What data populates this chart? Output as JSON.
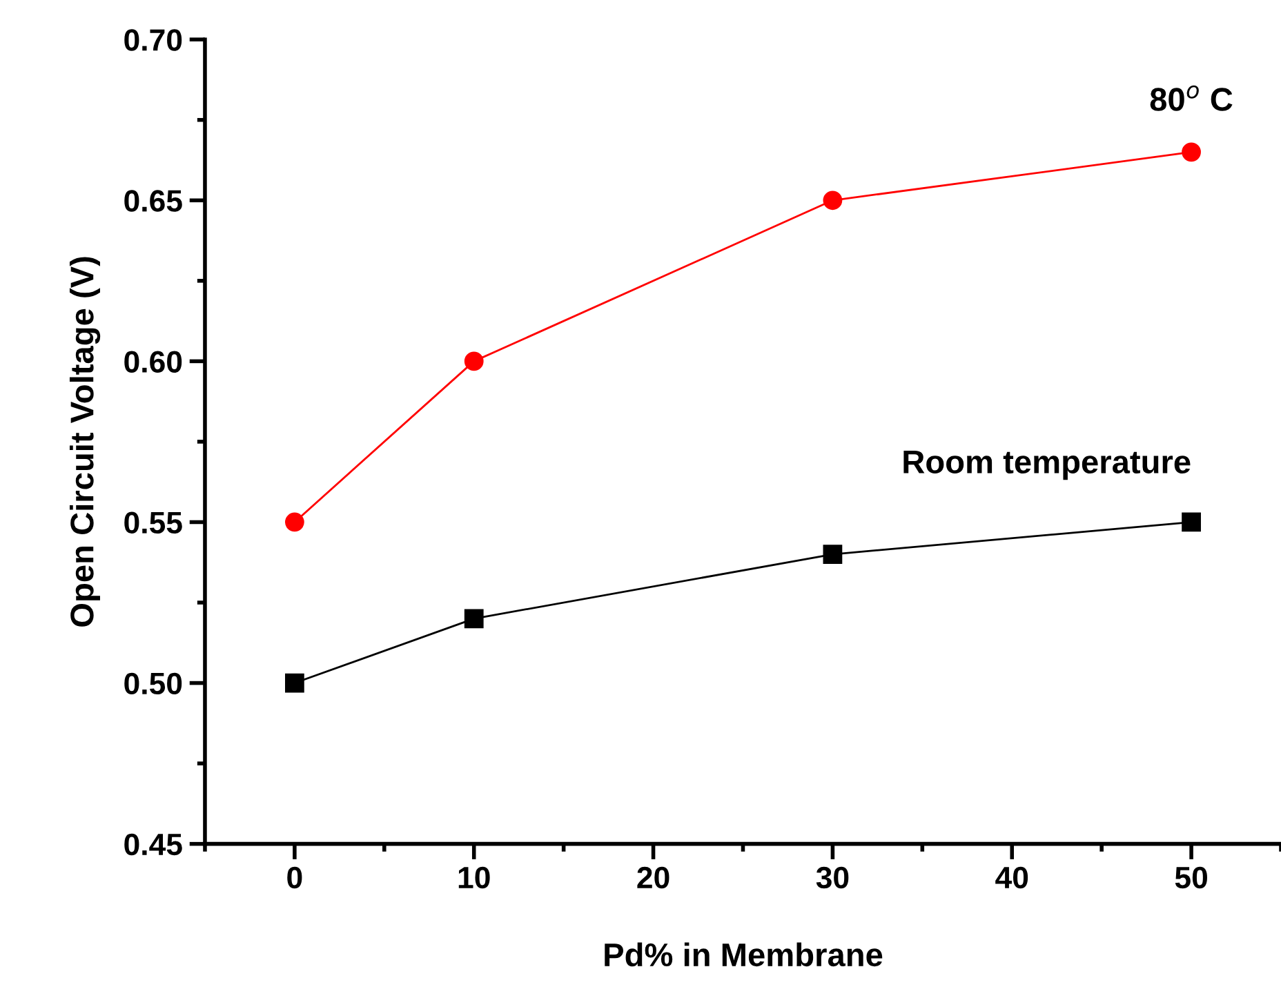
{
  "chart_data": {
    "type": "line",
    "xlabel": "Pd% in Membrane",
    "ylabel": "Open Circuit Voltage (V)",
    "x": [
      0,
      10,
      30,
      50
    ],
    "series": [
      {
        "name": "80$^{o}$ C",
        "color": "#ff0000",
        "values": [
          0.55,
          0.6,
          0.65,
          0.665
        ],
        "marker": "circle"
      },
      {
        "name": "Room temperature",
        "color": "#000000",
        "values": [
          0.5,
          0.52,
          0.54,
          0.55
        ],
        "marker": "square"
      }
    ],
    "xlim": [
      -5,
      55
    ],
    "ylim": [
      0.45,
      0.7
    ],
    "xticks": [
      {
        "value": -5,
        "label": null
      },
      0,
      {
        "value": 5,
        "label": null
      },
      10,
      {
        "value": 15,
        "label": null
      },
      20,
      {
        "value": 25,
        "label": null
      },
      30,
      {
        "value": 35,
        "label": null
      },
      40,
      {
        "value": 45,
        "label": null
      },
      50,
      {
        "value": 55,
        "label": null
      }
    ],
    "yticks": [
      {
        "value": 0.45,
        "label": "0.45"
      },
      {
        "value": 0.475,
        "label": null
      },
      {
        "value": 0.5,
        "label": "0.50"
      },
      {
        "value": 0.525,
        "label": null
      },
      {
        "value": 0.55,
        "label": "0.55"
      },
      {
        "value": 0.575,
        "label": null
      },
      {
        "value": 0.6,
        "label": "0.60"
      },
      {
        "value": 0.625,
        "label": null
      },
      {
        "value": 0.65,
        "label": "0.65"
      },
      {
        "value": 0.675,
        "label": null
      },
      {
        "value": 0.7,
        "label": "0.70"
      }
    ],
    "grid": false,
    "legend": false,
    "line_style": "solid"
  }
}
